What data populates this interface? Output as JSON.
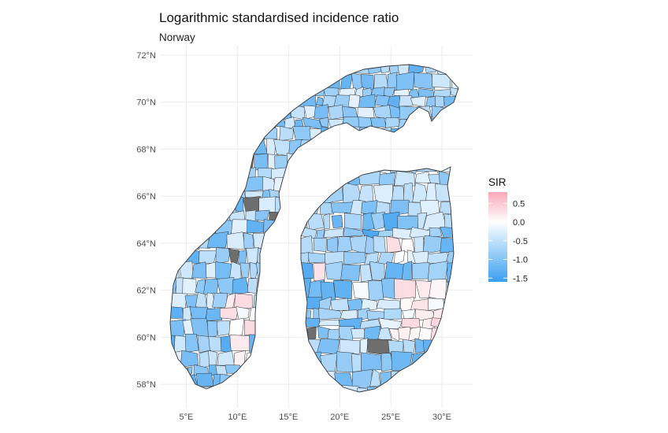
{
  "title": "Logarithmic standardised incidence ratio",
  "subtitle": "Norway",
  "axes": {
    "lat_ticks": [
      72,
      70,
      68,
      66,
      64,
      62,
      60,
      58
    ],
    "lat_labels": [
      "72°N",
      "70°N",
      "68°N",
      "66°N",
      "64°N",
      "62°N",
      "60°N",
      "58°N"
    ],
    "lon_ticks": [
      5,
      10,
      15,
      20,
      25,
      30
    ],
    "lon_labels": [
      "5°E",
      "10°E",
      "15°E",
      "20°E",
      "25°E",
      "30°E"
    ]
  },
  "legend": {
    "title": "SIR",
    "range": [
      -1.6,
      0.8
    ],
    "ticks": [
      0.5,
      0.0,
      -0.5,
      -1.0,
      -1.5
    ],
    "tick_labels": [
      "0.5",
      "0.0",
      "-0.5",
      "-1.0",
      "-1.5"
    ],
    "colors": {
      "high": "#f8a8b8",
      "mid": "#ffffff",
      "low": "#3a9ff0",
      "missing": "#6e6e6e"
    }
  }
}
